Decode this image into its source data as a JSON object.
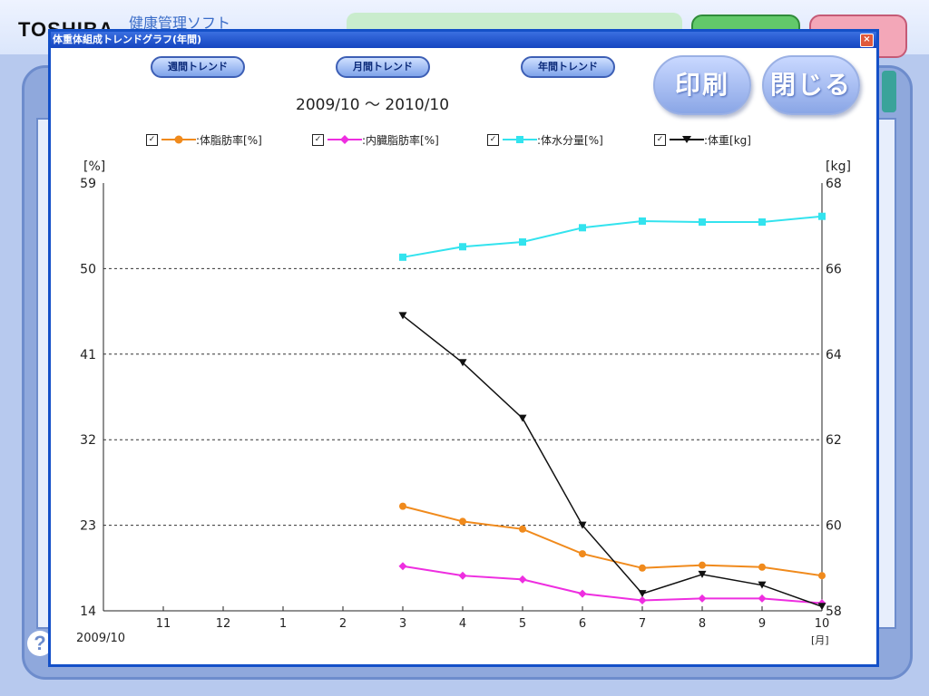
{
  "app": {
    "logo": "TOSHIBA",
    "title": "健康管理ソフト"
  },
  "dialog": {
    "title": "体重体組成トレンドグラフ(年間)",
    "close_label": "×",
    "buttons": {
      "weekly": "週間トレンド",
      "monthly": "月間トレンド",
      "yearly": "年間トレンド",
      "print": "印刷",
      "close": "閉じる"
    },
    "period": "2009/10 〜 2010/10"
  },
  "chart_data": {
    "type": "line",
    "y_left_unit": "[%]",
    "y_right_unit": "[kg]",
    "x_start_label": "2009/10",
    "x_unit": "[月]",
    "categories": [
      "11",
      "12",
      "1",
      "2",
      "3",
      "4",
      "5",
      "6",
      "7",
      "8",
      "9",
      "10"
    ],
    "y_left_ticks": [
      "59",
      "50",
      "41",
      "32",
      "23",
      "14"
    ],
    "y_right_ticks": [
      "68",
      "66",
      "64",
      "62",
      "60",
      "58"
    ],
    "y_left_range": [
      14,
      59
    ],
    "y_right_range": [
      58,
      68
    ],
    "grid": "horizontal dashed",
    "series": [
      {
        "name": "体脂肪率[%]",
        "legend": ":体脂肪率[%]",
        "axis": "left",
        "color": "#f08a1c",
        "marker": "circle",
        "x": [
          "3",
          "4",
          "5",
          "6",
          "7",
          "8",
          "9",
          "10"
        ],
        "values": [
          25.0,
          23.4,
          22.6,
          20.0,
          18.5,
          18.8,
          18.6,
          17.7
        ]
      },
      {
        "name": "内臓脂肪率[%]",
        "legend": ":内臓脂肪率[%]",
        "axis": "left",
        "color": "#ee2ee0",
        "marker": "diamond",
        "x": [
          "3",
          "4",
          "5",
          "6",
          "7",
          "8",
          "9",
          "10"
        ],
        "values": [
          18.7,
          17.7,
          17.3,
          15.8,
          15.1,
          15.3,
          15.3,
          14.8
        ]
      },
      {
        "name": "体水分量[%]",
        "legend": ":体水分量[%]",
        "axis": "left",
        "color": "#33e3ee",
        "marker": "square",
        "x": [
          "3",
          "4",
          "5",
          "6",
          "7",
          "8",
          "9",
          "10"
        ],
        "values": [
          51.2,
          52.3,
          52.8,
          54.3,
          55.0,
          54.9,
          54.9,
          55.5
        ]
      },
      {
        "name": "体重[kg]",
        "legend": ":体重[kg]",
        "axis": "right",
        "color": "#111111",
        "marker": "triangle-down",
        "x": [
          "3",
          "4",
          "5",
          "6",
          "7",
          "8",
          "9",
          "10"
        ],
        "values": [
          64.9,
          63.8,
          62.5,
          60.0,
          58.4,
          58.85,
          58.6,
          58.1
        ]
      }
    ]
  }
}
